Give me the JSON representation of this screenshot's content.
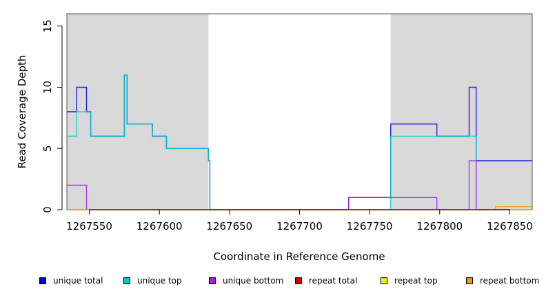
{
  "chart_data": {
    "type": "line",
    "title": "",
    "xlabel": "Coordinate in Reference Genome",
    "ylabel": "Read Coverage Depth",
    "xlim": [
      1267534,
      1267866
    ],
    "ylim": [
      0,
      16
    ],
    "x_ticks": [
      1267550,
      1267600,
      1267650,
      1267700,
      1267750,
      1267800,
      1267850
    ],
    "x_tick_labels": [
      "1267550",
      "1267600",
      "1267650",
      "1267700",
      "1267750",
      "1267800",
      "1267850"
    ],
    "y_ticks": [
      0,
      5,
      10,
      15
    ],
    "y_tick_labels": [
      "0",
      "5",
      "10",
      "15"
    ],
    "shaded_regions": [
      [
        1267534,
        1267635
      ],
      [
        1267765,
        1267866
      ]
    ],
    "grid": false,
    "legend_position": "bottom",
    "series": [
      {
        "name": "unique total",
        "color": "#0000dd",
        "x": [
          1267534,
          1267541,
          1267541,
          1267548,
          1267548,
          1267551,
          1267551,
          1267575,
          1267575,
          1267577,
          1267577,
          1267595,
          1267595,
          1267605,
          1267605,
          1267635,
          1267635,
          1267636,
          1267636,
          1267735,
          1267735,
          1267765,
          1267765,
          1267798,
          1267798,
          1267821,
          1267821,
          1267826,
          1267826,
          1267866
        ],
        "y": [
          8,
          8,
          10,
          10,
          8,
          8,
          6,
          6,
          11,
          11,
          7,
          7,
          6,
          6,
          5,
          5,
          4,
          4,
          0,
          0,
          1,
          1,
          7,
          7,
          6,
          6,
          10,
          10,
          4,
          4
        ]
      },
      {
        "name": "unique top",
        "color": "#00cccc",
        "x": [
          1267534,
          1267541,
          1267541,
          1267551,
          1267551,
          1267575,
          1267575,
          1267577,
          1267577,
          1267595,
          1267595,
          1267605,
          1267605,
          1267635,
          1267635,
          1267636,
          1267636,
          1267765,
          1267765,
          1267821,
          1267821,
          1267826,
          1267826,
          1267866
        ],
        "y": [
          6,
          6,
          8,
          8,
          6,
          6,
          11,
          11,
          7,
          7,
          6,
          6,
          5,
          5,
          4,
          4,
          0,
          0,
          6,
          6,
          6,
          6,
          0,
          0
        ]
      },
      {
        "name": "unique bottom",
        "color": "#a020f0",
        "x": [
          1267534,
          1267548,
          1267548,
          1267735,
          1267735,
          1267798,
          1267798,
          1267821,
          1267821,
          1267826,
          1267826,
          1267866
        ],
        "y": [
          2,
          2,
          0,
          0,
          1,
          1,
          0,
          0,
          4,
          4,
          0,
          0
        ]
      },
      {
        "name": "repeat total",
        "color": "#dd0000",
        "x": [
          1267534,
          1267866
        ],
        "y": [
          0,
          0
        ]
      },
      {
        "name": "repeat top",
        "color": "#eeee00",
        "x": [
          1267534,
          1267866
        ],
        "y": [
          0,
          0
        ]
      },
      {
        "name": "repeat bottom",
        "color": "#ee9900",
        "x": [
          1267534,
          1267840,
          1267840,
          1267866
        ],
        "y": [
          0,
          0,
          0.25,
          0.25
        ]
      }
    ]
  }
}
